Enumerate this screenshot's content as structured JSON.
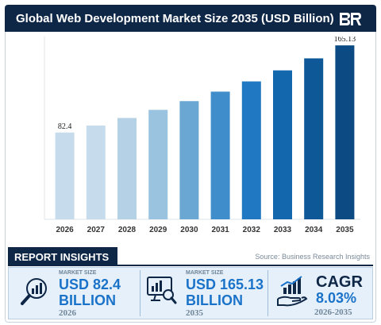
{
  "header": {
    "title": "Global Web Development Market Size 2035 (USD Billion)"
  },
  "chart_data": {
    "type": "bar",
    "title": "Global Web Development Market Size 2035 (USD Billion)",
    "categories": [
      "2026",
      "2027",
      "2028",
      "2029",
      "2030",
      "2031",
      "2032",
      "2033",
      "2034",
      "2035"
    ],
    "values": [
      82.4,
      89.0,
      96.2,
      103.9,
      112.2,
      121.2,
      130.9,
      141.4,
      152.8,
      165.13
    ],
    "data_labels": {
      "0": "82.4",
      "9": "165.13"
    },
    "bar_colors": [
      "#c6dcec",
      "#c6dcec",
      "#b4d1e6",
      "#9ac3df",
      "#6ba7d3",
      "#3f8ecb",
      "#1f78c1",
      "#1368ad",
      "#0e5897",
      "#0b4a83"
    ],
    "ylim": [
      0,
      172
    ],
    "grid": false,
    "legend": "none"
  },
  "insights": {
    "tab_label": "REPORT INSIGHTS",
    "source": "Source: Business Research Insights",
    "cards": [
      {
        "label": "MARKET SIZE",
        "value_line1": "USD 82.4",
        "value_line2": "BILLION",
        "year": "2026",
        "icon": "magnifier-chart-icon"
      },
      {
        "label": "MARKET SIZE",
        "value_line1": "USD 165.13",
        "value_line2": "BILLION",
        "year": "2035",
        "icon": "monitor-magnifier-icon"
      },
      {
        "label": "",
        "value_line1": "CAGR",
        "value_line2": "8.03%",
        "year": "2026-2035",
        "icon": "hand-growth-chart-icon"
      }
    ],
    "accent_color": "#1a73c9",
    "dark_color": "#0f2747"
  }
}
